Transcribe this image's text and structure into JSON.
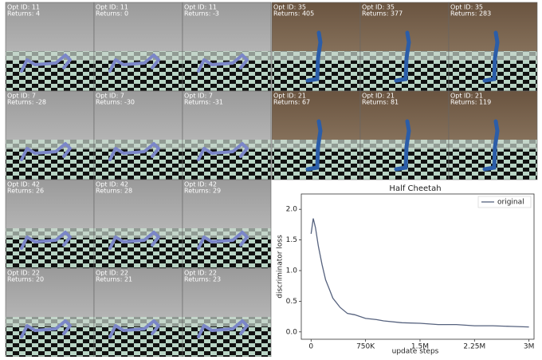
{
  "frames_left": [
    {
      "opt_id": "Opt ID: 11",
      "returns": "Returns: 4"
    },
    {
      "opt_id": "Opt ID: 11",
      "returns": "Returns: 0"
    },
    {
      "opt_id": "Opt ID: 11",
      "returns": "Returns: -3"
    },
    {
      "opt_id": "Opt ID: 7",
      "returns": "Returns: -28"
    },
    {
      "opt_id": "Opt ID: 7",
      "returns": "Returns: -30"
    },
    {
      "opt_id": "Opt ID: 7",
      "returns": "Returns: -31"
    },
    {
      "opt_id": "Opt ID: 42",
      "returns": "Returns: 26"
    },
    {
      "opt_id": "Opt ID: 42",
      "returns": "Returns: 28"
    },
    {
      "opt_id": "Opt ID: 42",
      "returns": "Returns: 29"
    },
    {
      "opt_id": "Opt ID: 22",
      "returns": "Returns: 20"
    },
    {
      "opt_id": "Opt ID: 22",
      "returns": "Returns: 21"
    },
    {
      "opt_id": "Opt ID: 22",
      "returns": "Returns: 23"
    }
  ],
  "frames_right": [
    {
      "opt_id": "Opt ID: 35",
      "returns": "Returns: 405"
    },
    {
      "opt_id": "Opt ID: 35",
      "returns": "Returns: 377"
    },
    {
      "opt_id": "Opt ID: 35",
      "returns": "Returns: 283"
    },
    {
      "opt_id": "Opt ID: 21",
      "returns": "Returns: 67"
    },
    {
      "opt_id": "Opt ID: 21",
      "returns": "Returns: 81"
    },
    {
      "opt_id": "Opt ID: 21",
      "returns": "Returns: 119"
    }
  ],
  "chart_data": {
    "type": "line",
    "title": "Half Cheetah",
    "x_label": "update steps",
    "y_label": "discriminator loss",
    "x": [
      0,
      30000,
      60000,
      100000,
      150000,
      200000,
      250000,
      300000,
      400000,
      500000,
      600000,
      750000,
      900000,
      1000000,
      1250000,
      1500000,
      1750000,
      2000000,
      2250000,
      2500000,
      2750000,
      3000000
    ],
    "series": [
      {
        "name": "original",
        "color": "#56627e",
        "values": [
          1.6,
          1.85,
          1.7,
          1.4,
          1.1,
          0.85,
          0.7,
          0.55,
          0.4,
          0.3,
          0.28,
          0.22,
          0.2,
          0.18,
          0.15,
          0.14,
          0.12,
          0.12,
          0.1,
          0.1,
          0.09,
          0.08
        ]
      }
    ],
    "xlim": [
      -135000,
      3070000
    ],
    "xticks": [
      0,
      {
        "value": 750000,
        "label": "750K"
      },
      {
        "value": 1500000,
        "label": "1.5M"
      },
      {
        "value": 2250000,
        "label": "2.25M"
      },
      {
        "value": 3000000,
        "label": "3M"
      }
    ],
    "ylim": [
      -0.12,
      2.25
    ],
    "yticks": [
      {
        "value": 0,
        "label": "0.0"
      },
      {
        "value": 0.5,
        "label": "0.5"
      },
      {
        "value": 1,
        "label": "1.0"
      },
      {
        "value": 1.5,
        "label": "1.5"
      },
      {
        "value": 2,
        "label": "2.0"
      }
    ],
    "legend": "upper right"
  }
}
